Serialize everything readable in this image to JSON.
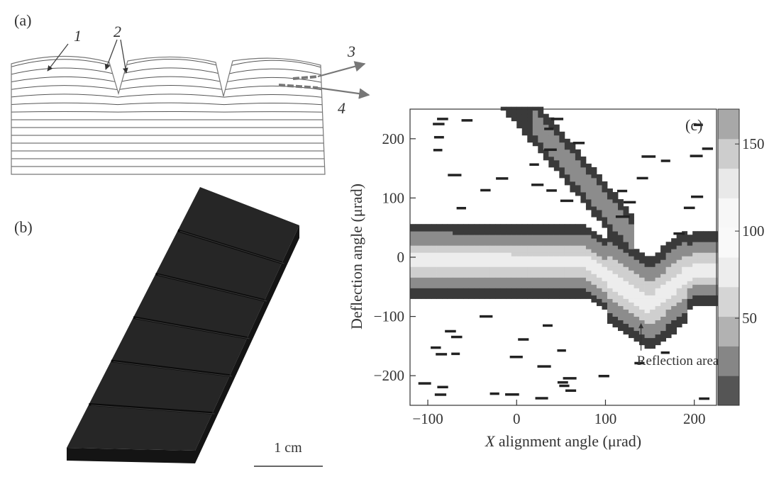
{
  "panel_a": {
    "label": "(a)",
    "callouts": [
      "1",
      "2",
      "3",
      "4"
    ]
  },
  "panel_b": {
    "label": "(b)",
    "scale_bar": "1 cm"
  },
  "panel_c": {
    "label": "(c)",
    "annotation": "Reflection area",
    "colors": {
      "level_low": "#3a3a3a",
      "level_mid": "#8c8c8c",
      "level_high": "#cfcfcf",
      "level_peak": "#ededed"
    }
  },
  "chart_data": {
    "type": "heatmap",
    "title": "",
    "xlabel_italic": "X",
    "xlabel": " alignment angle (μrad)",
    "ylabel": "Deflection angle (μrad)",
    "xlim": [
      -120,
      225
    ],
    "ylim": [
      -250,
      250
    ],
    "xticks": [
      -100,
      0,
      100,
      200
    ],
    "yticks": [
      -200,
      -100,
      0,
      100,
      200
    ],
    "colorbar": {
      "ticks": [
        50,
        100,
        150
      ],
      "range": [
        0,
        170
      ]
    },
    "annotation": {
      "text": "Reflection area",
      "x": 140,
      "y": -105
    }
  }
}
